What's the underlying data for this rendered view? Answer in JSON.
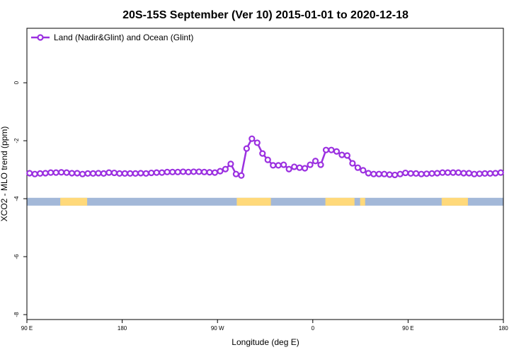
{
  "chart_data": {
    "type": "line",
    "title": "20S-15S September (Ver 10)   2015-01-01 to 2020-12-18",
    "x_label": "Longitude (deg E)",
    "y_label": "XCO2 - MLO trend (ppm)",
    "xlim": [
      90,
      540
    ],
    "ylim": [
      -8.17,
      1.88
    ],
    "xticks": [
      {
        "value": 90,
        "label": "90 E"
      },
      180,
      {
        "value": 270,
        "label": "90 W"
      },
      {
        "value": 360,
        "label": "0"
      },
      {
        "value": 450,
        "label": "90 E"
      },
      {
        "value": 540,
        "label": "180"
      }
    ],
    "yticks": [
      0,
      -2,
      -4,
      -6,
      -8
    ],
    "legend": "top-left",
    "x": [
      92.5,
      97.5,
      102.5,
      107.5,
      112.5,
      117.5,
      122.5,
      127.5,
      132.5,
      137.5,
      142.5,
      147.5,
      152.5,
      157.5,
      162.5,
      167.5,
      172.5,
      177.5,
      182.5,
      187.5,
      192.5,
      197.5,
      202.5,
      207.5,
      212.5,
      217.5,
      222.5,
      227.5,
      232.5,
      237.5,
      242.5,
      247.5,
      252.5,
      257.5,
      262.5,
      267.5,
      272.5,
      277.5,
      282.5,
      287.5,
      292.5,
      297.5,
      302.5,
      307.5,
      312.5,
      317.5,
      322.5,
      327.5,
      332.5,
      337.5,
      342.5,
      347.5,
      352.5,
      357.5,
      362.5,
      367.5,
      372.5,
      377.5,
      382.5,
      387.5,
      392.5,
      397.5,
      402.5,
      407.5,
      412.5,
      417.5,
      422.5,
      427.5,
      432.5,
      437.5,
      442.5,
      447.5,
      452.5,
      457.5,
      462.5,
      467.5,
      472.5,
      477.5,
      482.5,
      487.5,
      492.5,
      497.5,
      502.5,
      507.5,
      512.5,
      517.5,
      522.5,
      527.5,
      532.5,
      537.5
    ],
    "series": [
      {
        "name": "Land (Nadir&Glint) and Ocean (Glint)",
        "color": "#9b30e0",
        "values": [
          -3.12,
          -3.15,
          -3.13,
          -3.12,
          -3.1,
          -3.1,
          -3.09,
          -3.1,
          -3.12,
          -3.12,
          -3.15,
          -3.13,
          -3.13,
          -3.12,
          -3.13,
          -3.1,
          -3.11,
          -3.13,
          -3.13,
          -3.13,
          -3.13,
          -3.12,
          -3.13,
          -3.11,
          -3.1,
          -3.1,
          -3.08,
          -3.08,
          -3.08,
          -3.07,
          -3.08,
          -3.07,
          -3.07,
          -3.08,
          -3.09,
          -3.1,
          -3.05,
          -2.98,
          -2.8,
          -3.15,
          -3.2,
          -2.27,
          -1.93,
          -2.07,
          -2.44,
          -2.66,
          -2.85,
          -2.85,
          -2.83,
          -2.98,
          -2.9,
          -2.93,
          -2.95,
          -2.83,
          -2.7,
          -2.83,
          -2.32,
          -2.32,
          -2.37,
          -2.49,
          -2.51,
          -2.78,
          -2.93,
          -3.02,
          -3.12,
          -3.15,
          -3.15,
          -3.15,
          -3.17,
          -3.18,
          -3.15,
          -3.11,
          -3.13,
          -3.13,
          -3.15,
          -3.14,
          -3.13,
          -3.12,
          -3.1,
          -3.1,
          -3.1,
          -3.1,
          -3.12,
          -3.12,
          -3.15,
          -3.14,
          -3.13,
          -3.13,
          -3.12,
          -3.1
        ]
      }
    ],
    "surface_mask": {
      "ylim": [
        -4.24,
        -3.97
      ],
      "ocean_color": "#a3b8d8",
      "land_color": "#ffd97a",
      "land": [
        [
          121.5,
          146.9
        ],
        [
          288.2,
          320.4
        ],
        [
          371.9,
          399.4
        ],
        [
          404.7,
          409.4
        ],
        [
          481.7,
          506.5
        ]
      ]
    }
  }
}
